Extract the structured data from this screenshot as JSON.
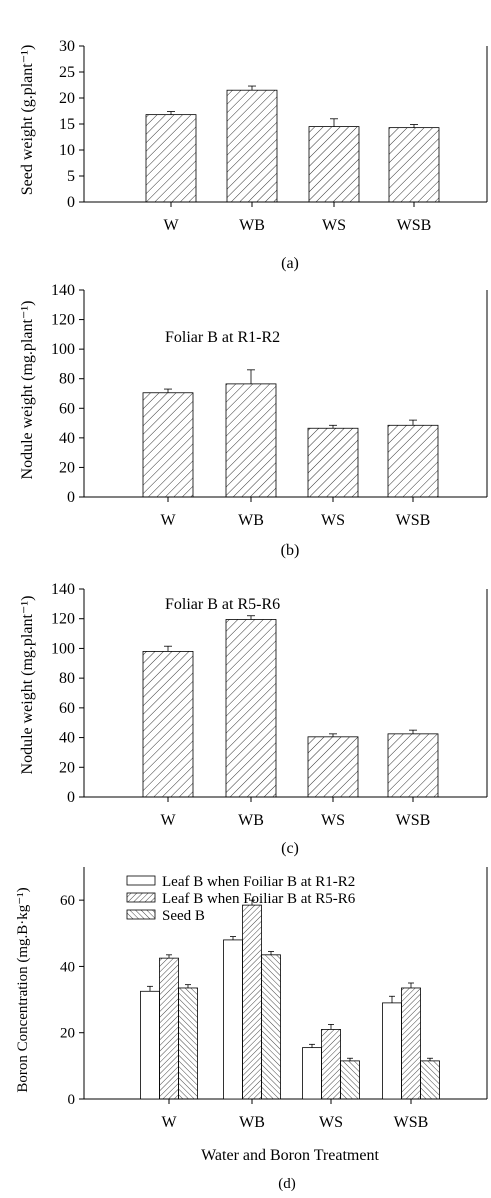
{
  "chart_data": [
    {
      "type": "bar",
      "panel_label": "(a)",
      "categories": [
        "W",
        "WB",
        "WS",
        "WSB"
      ],
      "values": [
        16.8,
        21.5,
        14.5,
        14.3
      ],
      "errors": [
        0.6,
        0.8,
        1.5,
        0.6
      ],
      "ylabel": "Seed weight (g.plant⁻¹)",
      "ylim": [
        0,
        30
      ],
      "yticks": [
        0,
        5,
        10,
        15,
        20,
        25,
        30
      ],
      "annotation": ""
    },
    {
      "type": "bar",
      "panel_label": "(b)",
      "categories": [
        "W",
        "WB",
        "WS",
        "WSB"
      ],
      "values": [
        70.5,
        76.5,
        46.5,
        48.5
      ],
      "errors": [
        2.5,
        9.5,
        2.0,
        3.5
      ],
      "ylabel": "Nodule weight (mg.plant⁻¹)",
      "ylim": [
        0,
        140
      ],
      "yticks": [
        0,
        20,
        40,
        60,
        80,
        100,
        120,
        140
      ],
      "annotation": "Foliar B at R1-R2"
    },
    {
      "type": "bar",
      "panel_label": "(c)",
      "categories": [
        "W",
        "WB",
        "WS",
        "WSB"
      ],
      "values": [
        98,
        119.5,
        40.5,
        42.5
      ],
      "errors": [
        3.5,
        2.5,
        2.0,
        2.5
      ],
      "ylabel": "Nodule weight (mg.plant⁻¹)",
      "ylim": [
        0,
        140
      ],
      "yticks": [
        0,
        20,
        40,
        60,
        80,
        100,
        120,
        140
      ],
      "annotation": "Foliar B at R5-R6"
    },
    {
      "type": "bar",
      "panel_label": "(d)",
      "categories": [
        "W",
        "WB",
        "WS",
        "WSB"
      ],
      "series": [
        {
          "name": "Leaf B when Foiliar B at R1-R2",
          "values": [
            32.5,
            48,
            15.5,
            29
          ],
          "errors": [
            1.5,
            1.0,
            1.0,
            2.0
          ]
        },
        {
          "name": "Leaf B when Foiliar B at R5-R6",
          "values": [
            42.5,
            58.5,
            21,
            33.5
          ],
          "errors": [
            1.0,
            1.5,
            1.5,
            1.5
          ]
        },
        {
          "name": "Seed B",
          "values": [
            33.5,
            43.5,
            11.5,
            11.5
          ],
          "errors": [
            1.0,
            1.0,
            0.8,
            0.8
          ]
        }
      ],
      "xlabel": "Water and Boron Treatment",
      "ylabel": "Boron Concentration (mg.B·kg⁻¹)",
      "ylim": [
        0,
        70
      ],
      "yticks": [
        0,
        20,
        40,
        60
      ],
      "legend": "top-left"
    }
  ]
}
